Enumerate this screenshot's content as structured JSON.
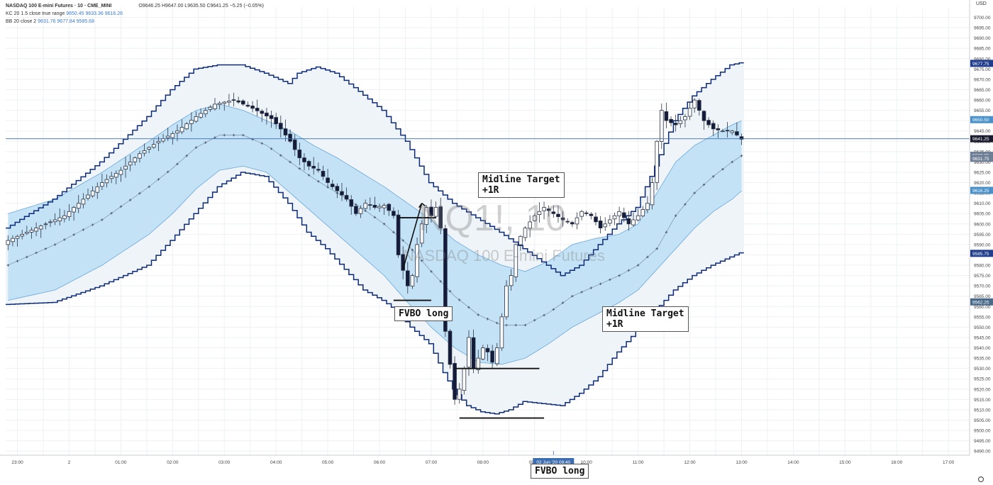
{
  "legend": {
    "symbol": "NASDAQ 100 E-mini Futures · 10 · CME_MINI",
    "ohlc": "O9646.25 H9647.00 L9635.50 C9641.25 −5.25 (−0.05%)",
    "kc_label": "KC 20 1.5 close true range",
    "kc_values": "9650.45 9633.36 9616.26",
    "bb_label": "BB 20 close 2",
    "bb_values": "9631.76 9677.84 9585.68"
  },
  "watermark": {
    "big": "NQ1!, 10",
    "small": "NASDAQ 100 E-mini Futures"
  },
  "currency": "USD",
  "annotations": {
    "fvbo1": "FVBO long",
    "fvbo2": "FVBO long",
    "mid1_l1": "Midline Target",
    "mid1_l2": "+1R",
    "mid2_l1": "Midline Target",
    "mid2_l2": "+1R"
  },
  "colors": {
    "bull": "#ffffff",
    "bear": "#131a3a",
    "bb_line": "#0d2a78",
    "bb_fill": "#eef4f7",
    "kc_fill": "#bfe0f5",
    "kc_line": "#6aa7d8",
    "mid": "#5b6f8e",
    "crosshair": "#3b6db0"
  },
  "chart_data": {
    "type": "candlestick",
    "title": "NASDAQ 100 E-mini Futures · 10 · CME_MINI",
    "ylim": [
      9488,
      9705
    ],
    "xlabel": "",
    "ylabel": "",
    "x_ticks": [
      "23:00",
      "2",
      "01:00",
      "02:00",
      "03:00",
      "04:00",
      "05:00",
      "06:00",
      "07:00",
      "08:00",
      "09:00",
      "10:00",
      "11:00",
      "12:00",
      "13:00",
      "14:00",
      "15:00",
      "16:00",
      "17:00"
    ],
    "x_tick_slots": [
      2,
      13,
      24,
      35,
      46,
      57,
      68,
      79,
      90,
      101,
      112,
      123,
      134,
      145,
      156,
      167,
      178,
      189,
      200
    ],
    "cursor_label": "02 Jun '20  09:40",
    "cursor_slot": 116,
    "y_ticks": [
      9490,
      9495,
      9500,
      9505,
      9510,
      9515,
      9520,
      9525,
      9530,
      9535,
      9540,
      9545,
      9550,
      9555,
      9560,
      9565,
      9570,
      9575,
      9580,
      9585,
      9590,
      9595,
      9600,
      9605,
      9610,
      9615,
      9620,
      9625,
      9630,
      9635,
      9640,
      9645,
      9650,
      9655,
      9660,
      9665,
      9670,
      9675,
      9680,
      9685,
      9690,
      9695,
      9700
    ],
    "price_labels": [
      {
        "value": 9677.75,
        "text": "9677.75",
        "color": "#1f3d8a"
      },
      {
        "value": 9650.5,
        "text": "9650.50",
        "color": "#4a90c8"
      },
      {
        "value": 9641.25,
        "text": "9641.25",
        "color": "#1a1a2e"
      },
      {
        "value": 9633.25,
        "text": "9633.25",
        "color": "#6f7f96"
      },
      {
        "value": 9631.75,
        "text": "9631.75",
        "color": "#6f7f96"
      },
      {
        "value": 9616.25,
        "text": "9616.25",
        "color": "#4a90c8"
      },
      {
        "value": 9585.75,
        "text": "9585.75",
        "color": "#1f3d8a"
      },
      {
        "value": 9562.25,
        "text": "9562.25",
        "color": "#4a6a8a"
      }
    ],
    "series": [
      {
        "name": "Price",
        "key": "close_path",
        "anchors": [
          [
            0,
            9592
          ],
          [
            6,
            9598
          ],
          [
            12,
            9604
          ],
          [
            16,
            9612
          ],
          [
            20,
            9620
          ],
          [
            24,
            9626
          ],
          [
            28,
            9634
          ],
          [
            32,
            9640
          ],
          [
            36,
            9645
          ],
          [
            40,
            9652
          ],
          [
            44,
            9658
          ],
          [
            48,
            9660
          ],
          [
            52,
            9656
          ],
          [
            56,
            9651
          ],
          [
            58,
            9646
          ],
          [
            60,
            9640
          ],
          [
            62,
            9632
          ],
          [
            64,
            9628
          ],
          [
            66,
            9626
          ],
          [
            68,
            9620
          ],
          [
            70,
            9616
          ],
          [
            72,
            9612
          ],
          [
            74,
            9605
          ],
          [
            76,
            9610
          ],
          [
            78,
            9608
          ],
          [
            80,
            9609
          ],
          [
            82,
            9604
          ],
          [
            83,
            9585
          ],
          [
            85,
            9570
          ],
          [
            86,
            9575
          ],
          [
            87,
            9590
          ],
          [
            88,
            9600
          ],
          [
            89,
            9608
          ],
          [
            90,
            9604
          ],
          [
            91,
            9608
          ],
          [
            92,
            9598
          ],
          [
            93,
            9548
          ],
          [
            94,
            9532
          ],
          [
            95,
            9515
          ],
          [
            96,
            9520
          ],
          [
            97,
            9530
          ],
          [
            98,
            9545
          ],
          [
            99,
            9530
          ],
          [
            100,
            9535
          ],
          [
            101,
            9540
          ],
          [
            102,
            9538
          ],
          [
            103,
            9533
          ],
          [
            104,
            9540
          ],
          [
            105,
            9555
          ],
          [
            106,
            9570
          ],
          [
            107,
            9575
          ],
          [
            108,
            9590
          ],
          [
            110,
            9598
          ],
          [
            112,
            9604
          ],
          [
            114,
            9608
          ],
          [
            116,
            9605
          ],
          [
            118,
            9602
          ],
          [
            120,
            9600
          ],
          [
            122,
            9606
          ],
          [
            124,
            9604
          ],
          [
            126,
            9598
          ],
          [
            128,
            9602
          ],
          [
            130,
            9606
          ],
          [
            132,
            9600
          ],
          [
            134,
            9604
          ],
          [
            136,
            9610
          ],
          [
            137,
            9620
          ],
          [
            138,
            9640
          ],
          [
            139,
            9655
          ],
          [
            140,
            9650
          ],
          [
            142,
            9648
          ],
          [
            144,
            9652
          ],
          [
            146,
            9660
          ],
          [
            148,
            9650
          ],
          [
            150,
            9646
          ],
          [
            152,
            9645
          ],
          [
            154,
            9645
          ],
          [
            156,
            9641
          ]
        ]
      },
      {
        "name": "Bollinger Bands",
        "key": "bb",
        "upper_anchors": [
          [
            0,
            9598
          ],
          [
            10,
            9612
          ],
          [
            20,
            9630
          ],
          [
            30,
            9652
          ],
          [
            35,
            9665
          ],
          [
            40,
            9675
          ],
          [
            45,
            9677
          ],
          [
            50,
            9677
          ],
          [
            55,
            9673
          ],
          [
            60,
            9668
          ],
          [
            62,
            9673
          ],
          [
            66,
            9676
          ],
          [
            70,
            9673
          ],
          [
            74,
            9666
          ],
          [
            80,
            9655
          ],
          [
            85,
            9640
          ],
          [
            90,
            9620
          ],
          [
            95,
            9610
          ],
          [
            100,
            9603
          ],
          [
            105,
            9596
          ],
          [
            110,
            9588
          ],
          [
            115,
            9580
          ],
          [
            118,
            9575
          ],
          [
            122,
            9580
          ],
          [
            126,
            9590
          ],
          [
            130,
            9600
          ],
          [
            134,
            9608
          ],
          [
            138,
            9628
          ],
          [
            142,
            9650
          ],
          [
            146,
            9662
          ],
          [
            150,
            9670
          ],
          [
            154,
            9677
          ],
          [
            156,
            9678
          ]
        ],
        "lower_anchors": [
          [
            0,
            9561
          ],
          [
            10,
            9562
          ],
          [
            20,
            9570
          ],
          [
            30,
            9580
          ],
          [
            35,
            9592
          ],
          [
            40,
            9605
          ],
          [
            45,
            9618
          ],
          [
            50,
            9625
          ],
          [
            55,
            9623
          ],
          [
            60,
            9610
          ],
          [
            64,
            9596
          ],
          [
            68,
            9588
          ],
          [
            72,
            9578
          ],
          [
            76,
            9568
          ],
          [
            80,
            9563
          ],
          [
            83,
            9558
          ],
          [
            86,
            9550
          ],
          [
            90,
            9542
          ],
          [
            93,
            9528
          ],
          [
            95,
            9520
          ],
          [
            98,
            9512
          ],
          [
            101,
            9509
          ],
          [
            104,
            9508
          ],
          [
            107,
            9510
          ],
          [
            110,
            9514
          ],
          [
            114,
            9513
          ],
          [
            118,
            9512
          ],
          [
            122,
            9518
          ],
          [
            126,
            9526
          ],
          [
            130,
            9538
          ],
          [
            134,
            9548
          ],
          [
            138,
            9558
          ],
          [
            142,
            9568
          ],
          [
            146,
            9575
          ],
          [
            150,
            9580
          ],
          [
            154,
            9584
          ],
          [
            156,
            9586
          ]
        ]
      },
      {
        "name": "Keltner Channel",
        "key": "kc",
        "upper_anchors": [
          [
            0,
            9605
          ],
          [
            10,
            9612
          ],
          [
            20,
            9625
          ],
          [
            30,
            9640
          ],
          [
            35,
            9648
          ],
          [
            40,
            9655
          ],
          [
            45,
            9658
          ],
          [
            50,
            9655
          ],
          [
            55,
            9650
          ],
          [
            60,
            9645
          ],
          [
            65,
            9638
          ],
          [
            70,
            9632
          ],
          [
            75,
            9625
          ],
          [
            80,
            9618
          ],
          [
            85,
            9610
          ],
          [
            90,
            9602
          ],
          [
            95,
            9592
          ],
          [
            100,
            9585
          ],
          [
            105,
            9580
          ],
          [
            110,
            9577
          ],
          [
            115,
            9582
          ],
          [
            120,
            9590
          ],
          [
            125,
            9593
          ],
          [
            130,
            9595
          ],
          [
            134,
            9600
          ],
          [
            138,
            9615
          ],
          [
            142,
            9630
          ],
          [
            146,
            9638
          ],
          [
            150,
            9643
          ],
          [
            154,
            9648
          ],
          [
            156,
            9650
          ]
        ],
        "mid_anchors": [
          [
            0,
            9580
          ],
          [
            10,
            9590
          ],
          [
            20,
            9602
          ],
          [
            30,
            9618
          ],
          [
            35,
            9627
          ],
          [
            40,
            9637
          ],
          [
            45,
            9643
          ],
          [
            50,
            9643
          ],
          [
            55,
            9638
          ],
          [
            60,
            9630
          ],
          [
            65,
            9622
          ],
          [
            70,
            9615
          ],
          [
            75,
            9608
          ],
          [
            80,
            9600
          ],
          [
            85,
            9590
          ],
          [
            90,
            9577
          ],
          [
            95,
            9565
          ],
          [
            100,
            9556
          ],
          [
            105,
            9551
          ],
          [
            110,
            9551
          ],
          [
            115,
            9557
          ],
          [
            120,
            9565
          ],
          [
            125,
            9570
          ],
          [
            130,
            9575
          ],
          [
            134,
            9580
          ],
          [
            138,
            9588
          ],
          [
            142,
            9604
          ],
          [
            146,
            9615
          ],
          [
            150,
            9623
          ],
          [
            154,
            9630
          ],
          [
            156,
            9633
          ]
        ],
        "lower_anchors": [
          [
            0,
            9563
          ],
          [
            10,
            9568
          ],
          [
            20,
            9580
          ],
          [
            30,
            9595
          ],
          [
            35,
            9605
          ],
          [
            40,
            9617
          ],
          [
            45,
            9626
          ],
          [
            50,
            9628
          ],
          [
            55,
            9625
          ],
          [
            60,
            9615
          ],
          [
            65,
            9605
          ],
          [
            70,
            9595
          ],
          [
            75,
            9585
          ],
          [
            80,
            9575
          ],
          [
            85,
            9562
          ],
          [
            90,
            9550
          ],
          [
            95,
            9540
          ],
          [
            100,
            9533
          ],
          [
            105,
            9532
          ],
          [
            110,
            9535
          ],
          [
            115,
            9542
          ],
          [
            120,
            9550
          ],
          [
            125,
            9556
          ],
          [
            130,
            9562
          ],
          [
            134,
            9568
          ],
          [
            138,
            9578
          ],
          [
            142,
            9588
          ],
          [
            146,
            9598
          ],
          [
            150,
            9606
          ],
          [
            154,
            9612
          ],
          [
            156,
            9616
          ]
        ]
      }
    ],
    "levels": [
      {
        "from": 82,
        "to": 90,
        "value": 9563
      },
      {
        "from": 83,
        "to": 91,
        "value": 9603
      },
      {
        "from": 95,
        "to": 113,
        "value": 9530
      },
      {
        "from": 96,
        "to": 114,
        "value": 9506
      }
    ]
  }
}
